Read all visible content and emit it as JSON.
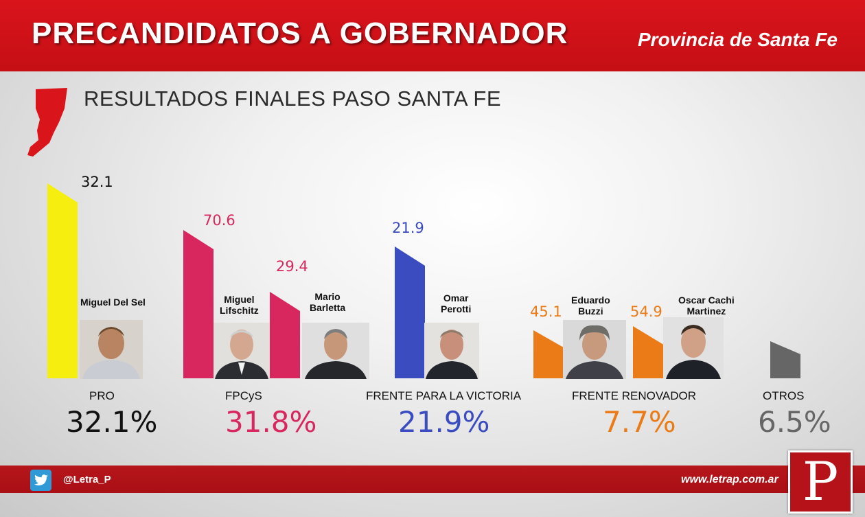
{
  "header": {
    "title": "PRECANDIDATOS A GOBERNADOR",
    "region": "Provincia de Santa Fe"
  },
  "subtitle": "RESULTADOS FINALES PASO SANTA FE",
  "chart_data": {
    "type": "bar",
    "title": "RESULTADOS FINALES PASO SANTA FE",
    "bars": [
      {
        "party": "PRO",
        "candidate": "Miguel Del Sel",
        "value": 32.1,
        "label": "32.1",
        "color": "#f5ee0e"
      },
      {
        "party": "FPCyS",
        "candidate": "Miguel Lifschitz",
        "value": 70.6,
        "label": "70.6",
        "color": "#d8265e"
      },
      {
        "party": "FPCyS",
        "candidate": "Mario Barletta",
        "value": 29.4,
        "label": "29.4",
        "color": "#d8265e"
      },
      {
        "party": "FRENTE PARA LA VICTORIA",
        "candidate": "Omar Perotti",
        "value": 21.9,
        "label": "21.9",
        "color": "#3a4cc0"
      },
      {
        "party": "FRENTE RENOVADOR",
        "candidate": "Eduardo Buzzi",
        "value": 45.1,
        "label": "45.1",
        "color": "#eb7b16"
      },
      {
        "party": "FRENTE RENOVADOR",
        "candidate": "Oscar Cachi Martinez",
        "value": 54.9,
        "label": "54.9",
        "color": "#eb7b16"
      },
      {
        "party": "OTROS",
        "candidate": "",
        "value": null,
        "label": "",
        "color": "#666666"
      }
    ],
    "parties": [
      {
        "name": "PRO",
        "percent": 32.1,
        "percent_label": "32.1%",
        "color": "#111111"
      },
      {
        "name": "FPCyS",
        "percent": 31.8,
        "percent_label": "31.8%",
        "color": "#d8265e"
      },
      {
        "name": "FRENTE PARA LA VICTORIA",
        "percent": 21.9,
        "percent_label": "21.9%",
        "color": "#3a4cc0"
      },
      {
        "name": "FRENTE RENOVADOR",
        "percent": 7.7,
        "percent_label": "7.7%",
        "color": "#eb7b16"
      },
      {
        "name": "OTROS",
        "percent": 6.5,
        "percent_label": "6.5%",
        "color": "#666666"
      }
    ]
  },
  "candidate_labels": {
    "del_sel": "Miguel Del Sel",
    "lifschitz": [
      "Miguel",
      "Lifschitz"
    ],
    "barletta": [
      "Mario",
      "Barletta"
    ],
    "perotti": [
      "Omar",
      "Perotti"
    ],
    "buzzi": [
      "Eduardo",
      "Buzzi"
    ],
    "martinez": [
      "Oscar Cachi",
      "Martinez"
    ]
  },
  "footer": {
    "twitter_handle": "@Letra_P",
    "website": "www.letrap.com.ar",
    "logo_letter": "P"
  }
}
